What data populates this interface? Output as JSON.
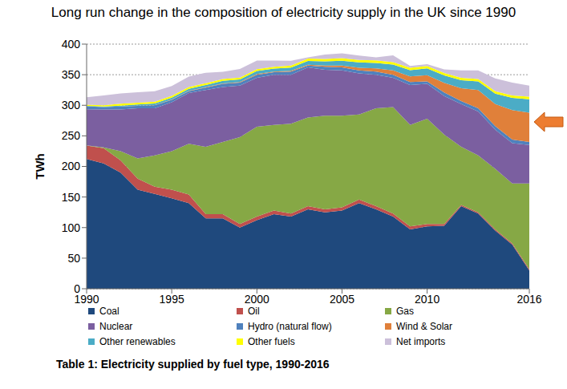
{
  "chart_data": {
    "type": "area",
    "title": "Long run change in the composition of electricity supply in the UK since 1990",
    "annotations": [
      "Table 1: Electricity supplied by fuel type, 1990-2016"
    ],
    "y_label": "TWh",
    "x": [
      1990,
      1991,
      1992,
      1993,
      1994,
      1995,
      1996,
      1997,
      1998,
      1999,
      2000,
      2001,
      2002,
      2003,
      2004,
      2005,
      2006,
      2007,
      2008,
      2009,
      2010,
      2011,
      2012,
      2013,
      2014,
      2015,
      2016
    ],
    "xlim": [
      1990,
      2016
    ],
    "xticks": [
      1990,
      1995,
      2000,
      2005,
      2010,
      2016
    ],
    "ylim": [
      0,
      400
    ],
    "yticks": [
      0,
      50,
      100,
      150,
      200,
      250,
      300,
      350,
      400
    ],
    "grid": true,
    "stacked": true,
    "legend": "bottom",
    "series": [
      {
        "name": "Coal",
        "color": "#1f497d",
        "values": [
          212,
          205,
          190,
          162,
          155,
          148,
          140,
          115,
          115,
          100,
          112,
          122,
          118,
          130,
          125,
          128,
          140,
          130,
          118,
          97,
          102,
          103,
          135,
          123,
          95,
          72,
          30
        ]
      },
      {
        "name": "Oil",
        "color": "#c0504d",
        "values": [
          22,
          25,
          20,
          18,
          12,
          14,
          14,
          7,
          7,
          6,
          6,
          6,
          5,
          5,
          5,
          5,
          6,
          5,
          5,
          5,
          4,
          3,
          2,
          2,
          2,
          2,
          2
        ]
      },
      {
        "name": "Gas",
        "color": "#86a845",
        "values": [
          0.5,
          1,
          15,
          33,
          51,
          63,
          83,
          110,
          118,
          142,
          147,
          140,
          147,
          145,
          153,
          150,
          139,
          160,
          174,
          166,
          172,
          146,
          95,
          93,
          99,
          98,
          140
        ]
      },
      {
        "name": "Nuclear",
        "color": "#7b5fa0",
        "values": [
          59,
          62,
          68,
          82,
          77,
          80,
          83,
          93,
          90,
          84,
          80,
          82,
          80,
          82,
          75,
          74,
          67,
          55,
          48,
          65,
          57,
          63,
          70,
          72,
          64,
          66,
          63
        ]
      },
      {
        "name": "Hydro (natural flow)",
        "color": "#4f81bd",
        "values": [
          5,
          4,
          5,
          4,
          5,
          4,
          3,
          4,
          5,
          5,
          5,
          4,
          5,
          3,
          5,
          5,
          5,
          5,
          5,
          5,
          4,
          6,
          5,
          5,
          6,
          6,
          5
        ]
      },
      {
        "name": "Wind & Solar",
        "color": "#e0803a",
        "values": [
          0,
          0,
          0,
          0.2,
          0.3,
          0.4,
          0.5,
          0.7,
          0.9,
          0.9,
          1,
          1,
          1.3,
          1.3,
          1.9,
          2.9,
          4.2,
          5.3,
          7.1,
          9.3,
          10.3,
          15.8,
          21,
          30,
          36,
          48,
          48
        ]
      },
      {
        "name": "Other renewables",
        "color": "#4bacc6",
        "values": [
          0.5,
          1,
          1.5,
          2,
          2.5,
          3,
          3.5,
          3.5,
          4,
          4.5,
          5,
          5,
          5.5,
          6,
          7,
          8,
          9,
          9,
          9.5,
          10,
          11,
          12,
          13,
          14,
          17,
          20,
          22
        ]
      },
      {
        "name": "Other fuels",
        "color": "#ffff00",
        "values": [
          2,
          2,
          3,
          3,
          3,
          3,
          3,
          3,
          3,
          3,
          3,
          3,
          3,
          4,
          4,
          4,
          4,
          4,
          4,
          4,
          4,
          4,
          4,
          4,
          4,
          4,
          4
        ]
      },
      {
        "name": "Net imports",
        "color": "#ccc0da",
        "values": [
          12,
          16,
          17,
          17,
          17,
          16,
          17,
          17,
          12,
          14,
          14,
          10,
          8,
          2,
          7,
          8,
          7,
          5,
          11,
          3,
          3,
          6,
          12,
          14,
          21,
          21,
          18
        ]
      }
    ]
  }
}
